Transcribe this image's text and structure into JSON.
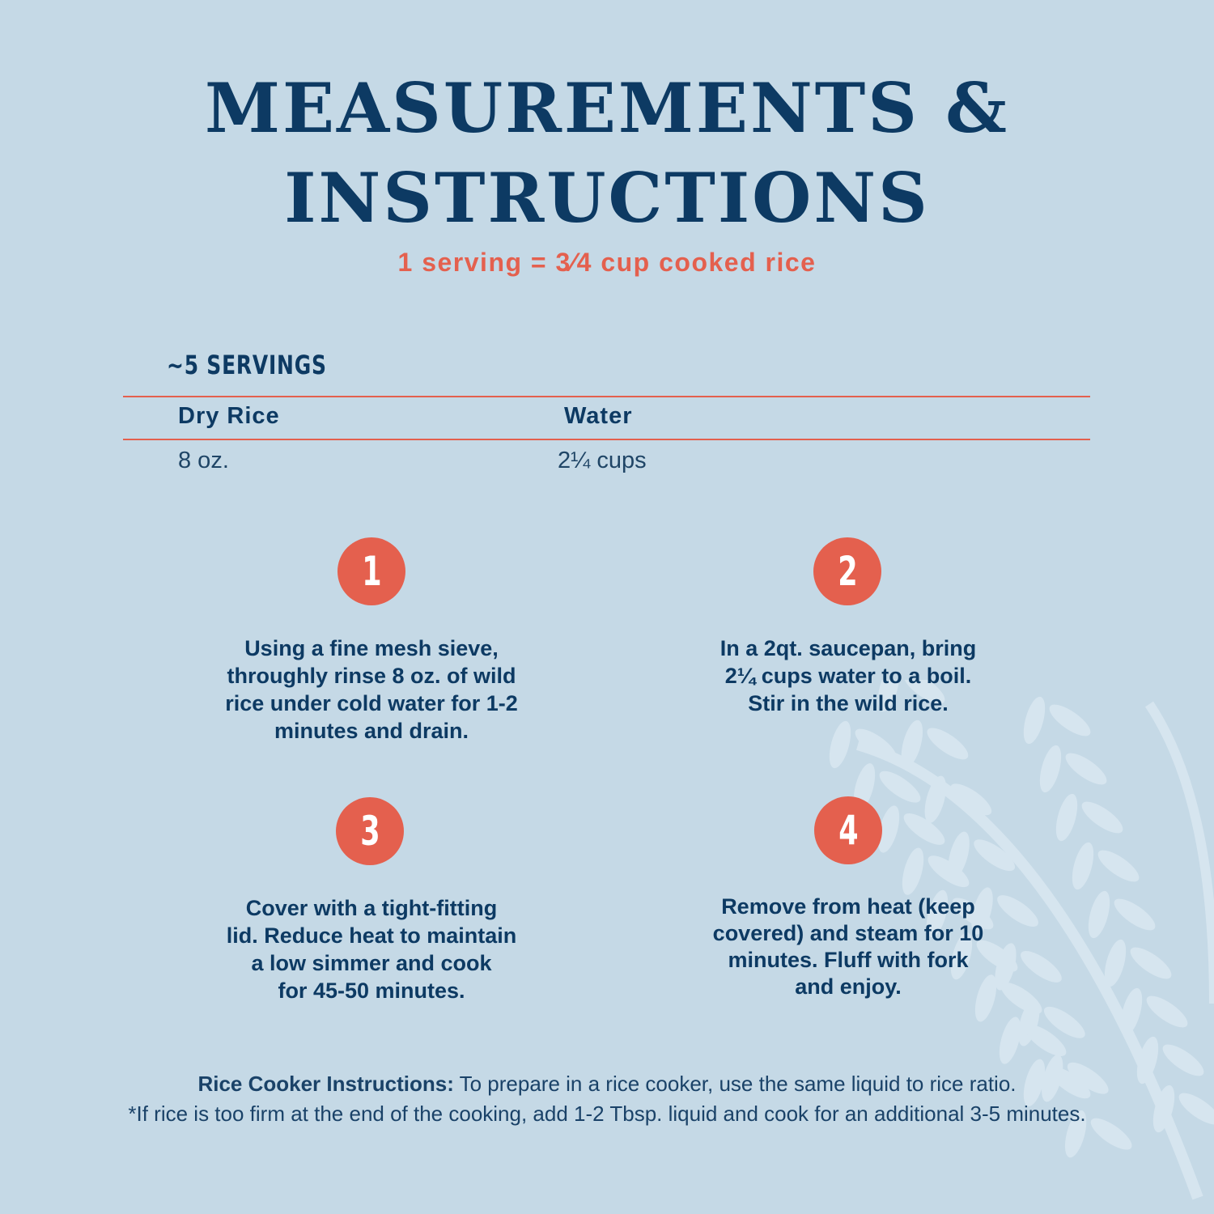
{
  "colors": {
    "background": "#c5d9e6",
    "navy": "#0d3a63",
    "accent": "#e4604e"
  },
  "title": {
    "line1": "MEASUREMENTS &",
    "line2": "INSTRUCTIONS"
  },
  "subtitle": "1 serving = 3⁄4 cup cooked rice",
  "table": {
    "servings": "~5 SERVINGS",
    "headers": [
      "Dry Rice",
      "Water"
    ],
    "row": [
      "8 oz.",
      "2¼ cups"
    ]
  },
  "steps": [
    {
      "number": "1",
      "lines": [
        "Using a fine mesh sieve,",
        "throughly rinse 8 oz. of wild",
        "rice under cold water for 1-2",
        "minutes and drain."
      ]
    },
    {
      "number": "2",
      "lines": [
        "In a 2qt. saucepan, bring",
        "2¼ cups water to a boil.",
        "Stir in the wild rice."
      ]
    },
    {
      "number": "3",
      "lines": [
        "Cover with a tight-fitting",
        "lid. Reduce heat to maintain",
        "a low simmer and cook",
        "for 45-50 minutes."
      ]
    },
    {
      "number": "4",
      "lines": [
        "Remove from heat (keep",
        "covered) and steam for 10",
        "minutes. Fluff with fork",
        "and enjoy."
      ]
    }
  ],
  "footer": {
    "label": "Rice Cooker Instructions:",
    "text": " To prepare in a rice cooker, use the same liquid to rice ratio.",
    "note": "*If rice is too firm at the end of the cooking, add 1-2 Tbsp. liquid and cook for an additional 3-5 minutes."
  },
  "decoration": "wheat-stalk-watermark"
}
